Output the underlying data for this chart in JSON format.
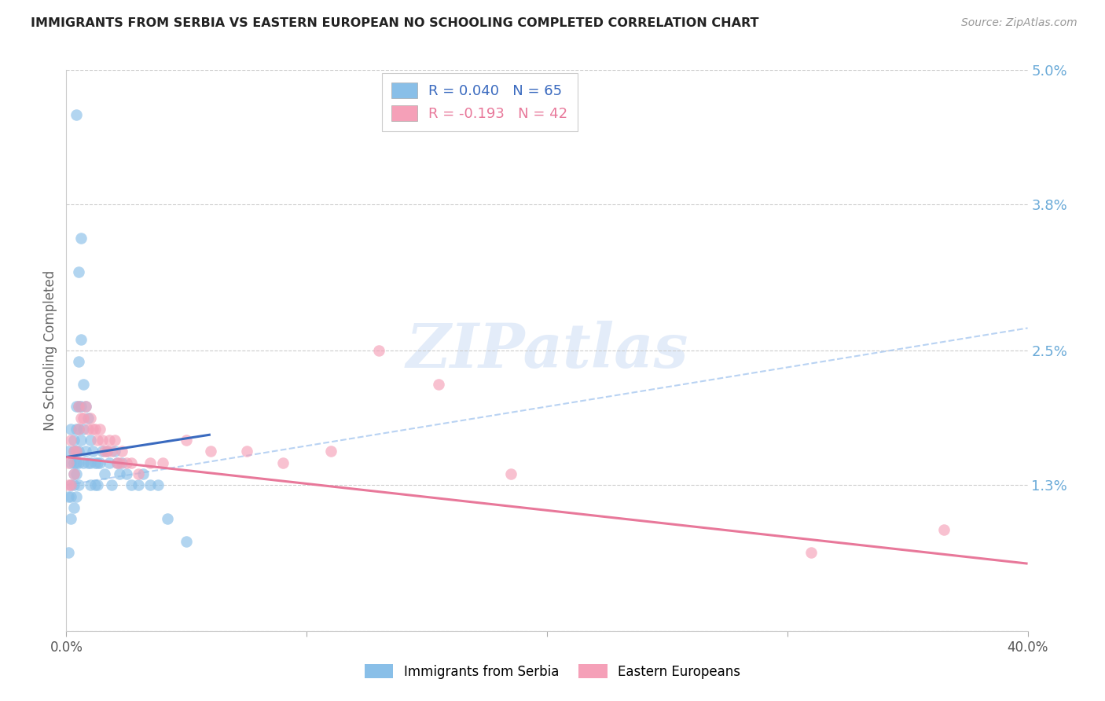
{
  "title": "IMMIGRANTS FROM SERBIA VS EASTERN EUROPEAN NO SCHOOLING COMPLETED CORRELATION CHART",
  "source": "Source: ZipAtlas.com",
  "ylabel": "No Schooling Completed",
  "xlim": [
    0.0,
    0.4
  ],
  "ylim": [
    0.0,
    0.05
  ],
  "yticks": [
    0.0,
    0.013,
    0.025,
    0.038,
    0.05
  ],
  "ytick_labels": [
    "",
    "1.3%",
    "2.5%",
    "3.8%",
    "5.0%"
  ],
  "xticks": [
    0.0,
    0.1,
    0.2,
    0.3,
    0.4
  ],
  "xtick_labels": [
    "0.0%",
    "",
    "",
    "",
    "40.0%"
  ],
  "serbia_R": 0.04,
  "serbia_N": 65,
  "eastern_R": -0.193,
  "eastern_N": 42,
  "serbia_color": "#89bfe8",
  "eastern_color": "#f5a0b8",
  "serbia_line_color": "#3a6abf",
  "eastern_line_color": "#e8789a",
  "dashed_line_color": "#a8c8f0",
  "watermark": "ZIPatlas",
  "serbia_x": [
    0.001,
    0.001,
    0.001,
    0.002,
    0.002,
    0.002,
    0.002,
    0.002,
    0.003,
    0.003,
    0.003,
    0.003,
    0.003,
    0.003,
    0.004,
    0.004,
    0.004,
    0.004,
    0.004,
    0.004,
    0.004,
    0.005,
    0.005,
    0.005,
    0.005,
    0.005,
    0.005,
    0.005,
    0.006,
    0.006,
    0.006,
    0.006,
    0.007,
    0.007,
    0.007,
    0.008,
    0.008,
    0.009,
    0.009,
    0.01,
    0.01,
    0.01,
    0.011,
    0.012,
    0.012,
    0.013,
    0.013,
    0.014,
    0.015,
    0.016,
    0.017,
    0.018,
    0.019,
    0.02,
    0.021,
    0.022,
    0.023,
    0.025,
    0.027,
    0.03,
    0.032,
    0.035,
    0.038,
    0.042,
    0.05
  ],
  "serbia_y": [
    0.016,
    0.012,
    0.007,
    0.018,
    0.015,
    0.013,
    0.012,
    0.01,
    0.017,
    0.016,
    0.015,
    0.014,
    0.013,
    0.011,
    0.046,
    0.02,
    0.018,
    0.016,
    0.015,
    0.014,
    0.012,
    0.032,
    0.024,
    0.02,
    0.018,
    0.016,
    0.015,
    0.013,
    0.035,
    0.026,
    0.02,
    0.017,
    0.022,
    0.018,
    0.015,
    0.02,
    0.016,
    0.019,
    0.015,
    0.017,
    0.015,
    0.013,
    0.016,
    0.015,
    0.013,
    0.015,
    0.013,
    0.015,
    0.016,
    0.014,
    0.016,
    0.015,
    0.013,
    0.016,
    0.015,
    0.014,
    0.015,
    0.014,
    0.013,
    0.013,
    0.014,
    0.013,
    0.013,
    0.01,
    0.008
  ],
  "eastern_x": [
    0.001,
    0.001,
    0.002,
    0.002,
    0.003,
    0.003,
    0.004,
    0.005,
    0.005,
    0.006,
    0.007,
    0.008,
    0.009,
    0.01,
    0.011,
    0.012,
    0.013,
    0.014,
    0.015,
    0.016,
    0.017,
    0.018,
    0.019,
    0.02,
    0.021,
    0.022,
    0.023,
    0.025,
    0.027,
    0.03,
    0.035,
    0.04,
    0.05,
    0.06,
    0.075,
    0.09,
    0.11,
    0.13,
    0.155,
    0.185,
    0.31,
    0.365
  ],
  "eastern_y": [
    0.015,
    0.013,
    0.017,
    0.013,
    0.016,
    0.014,
    0.016,
    0.02,
    0.018,
    0.019,
    0.019,
    0.02,
    0.018,
    0.019,
    0.018,
    0.018,
    0.017,
    0.018,
    0.017,
    0.016,
    0.016,
    0.017,
    0.016,
    0.017,
    0.015,
    0.015,
    0.016,
    0.015,
    0.015,
    0.014,
    0.015,
    0.015,
    0.017,
    0.016,
    0.016,
    0.015,
    0.016,
    0.025,
    0.022,
    0.014,
    0.007,
    0.009
  ],
  "serbia_line_x0": 0.0,
  "serbia_line_y0": 0.0155,
  "serbia_line_x1": 0.06,
  "serbia_line_y1": 0.0175,
  "eastern_line_x0": 0.0,
  "eastern_line_y0": 0.0155,
  "eastern_line_x1": 0.4,
  "eastern_line_y1": 0.006,
  "dash_line_x0": 0.0,
  "dash_line_y0": 0.013,
  "dash_line_x1": 0.4,
  "dash_line_y1": 0.027,
  "background_color": "#ffffff",
  "grid_color": "#cccccc"
}
